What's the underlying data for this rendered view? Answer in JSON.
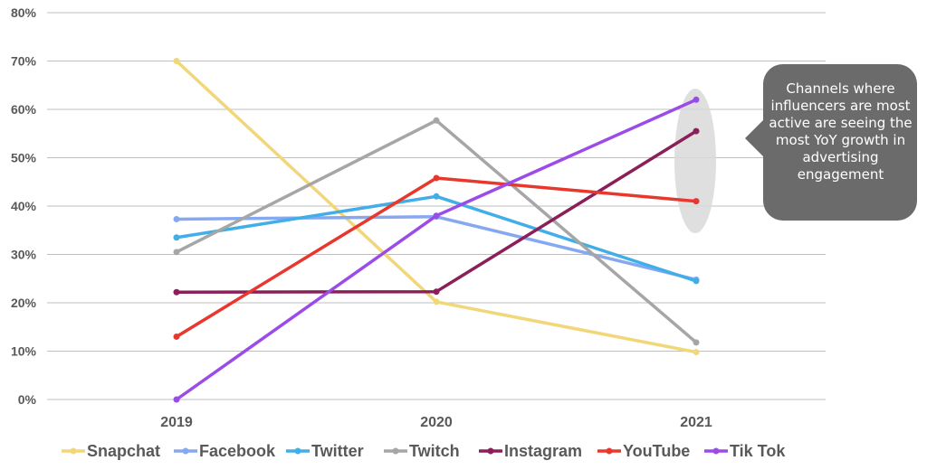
{
  "chart_data": {
    "type": "line",
    "categories": [
      "2019",
      "2020",
      "2021"
    ],
    "ylim": [
      0,
      80
    ],
    "yticks": [
      "0%",
      "10%",
      "20%",
      "30%",
      "40%",
      "50%",
      "60%",
      "70%",
      "80%"
    ],
    "grid": true,
    "legend_position": "bottom",
    "series": [
      {
        "name": "Snapchat",
        "color": "#f2d67a",
        "values": [
          70,
          20.2,
          9.8
        ]
      },
      {
        "name": "Facebook",
        "color": "#86a8f0",
        "values": [
          37.3,
          37.8,
          24.8
        ]
      },
      {
        "name": "Twitter",
        "color": "#41aee8",
        "values": [
          33.5,
          42,
          24.5
        ]
      },
      {
        "name": "Twitch",
        "color": "#a6a6a6",
        "values": [
          30.5,
          57.7,
          11.8
        ]
      },
      {
        "name": "Instagram",
        "color": "#8b1f59",
        "values": [
          22.2,
          22.3,
          55.5
        ]
      },
      {
        "name": "YouTube",
        "color": "#e8382e",
        "values": [
          13,
          45.8,
          41
        ]
      },
      {
        "name": "Tik Tok",
        "color": "#9b4ce8",
        "values": [
          0,
          38,
          62
        ]
      }
    ],
    "annotation": {
      "text": "Channels where influencers are most active are seeing the most YoY growth in advertising engagement",
      "bubble_color": "#6b6b6b",
      "highlight_color": "#d9d9d9"
    }
  }
}
